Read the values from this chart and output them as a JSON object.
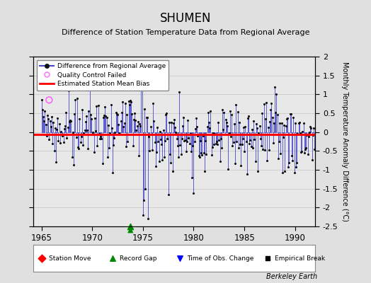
{
  "title": "SHUMEN",
  "subtitle": "Difference of Station Temperature Data from Regional Average",
  "ylabel": "Monthly Temperature Anomaly Difference (°C)",
  "xlabel_ticks": [
    1965,
    1970,
    1975,
    1980,
    1985,
    1990
  ],
  "xlim": [
    1964.2,
    1992.0
  ],
  "ylim": [
    -2.5,
    2.0
  ],
  "yticks_right": [
    -2.0,
    -1.5,
    -1.0,
    -0.5,
    0.0,
    0.5,
    1.0,
    1.5
  ],
  "ytick_top": 2.0,
  "ytick_bottom": -2.5,
  "mean_bias": -0.07,
  "background_color": "#e0e0e0",
  "plot_bg_color": "#e8e8e8",
  "line_color": "#4444cc",
  "dot_color": "#111111",
  "bias_line_color": "#ff0000",
  "qc_fail_color": "#ff66ff",
  "watermark": "Berkeley Earth",
  "record_gap_x": 1973.75,
  "qc_fail_x": 1965.75,
  "qc_fail_y": 0.85,
  "early_segment_end": 1966.5,
  "seed": 99
}
